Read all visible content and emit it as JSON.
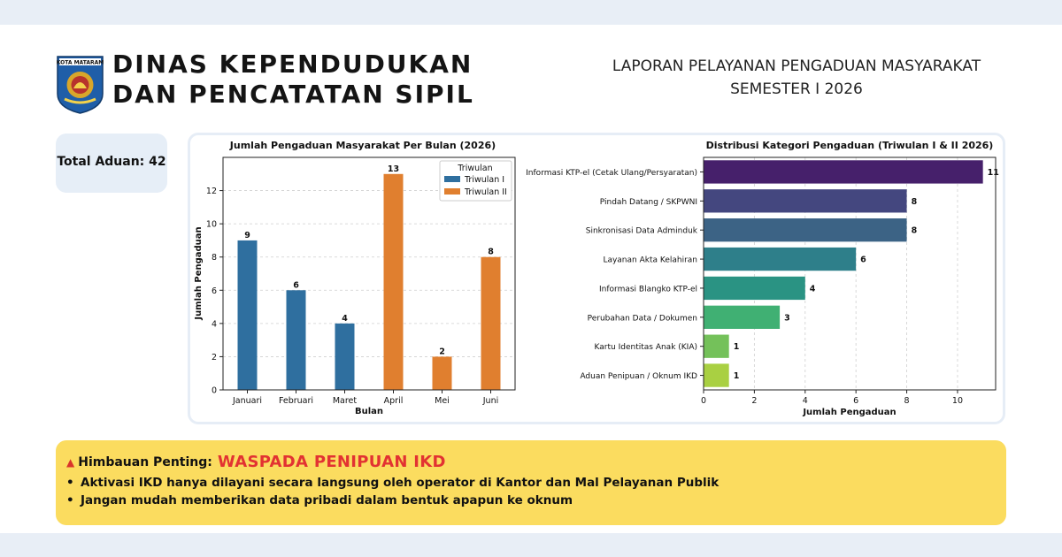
{
  "header": {
    "logo_text": "KOTA MATARAM",
    "agency_line1": "DINAS KEPENDUDUKAN",
    "agency_line2": "DAN PENCATATAN SIPIL",
    "report_line1": "LAPORAN PELAYANAN PENGADUAN MASYARAKAT",
    "report_line2": "SEMESTER I 2026"
  },
  "summary": {
    "total_label": "Total Aduan: 42"
  },
  "chart_data": [
    {
      "type": "bar",
      "title": "Jumlah Pengaduan Masyarakat Per Bulan (2026)",
      "xlabel": "Bulan",
      "ylabel": "Jumlah Pengaduan",
      "categories": [
        "Januari",
        "Februari",
        "Maret",
        "April",
        "Mei",
        "Juni"
      ],
      "series": [
        {
          "name": "Triwulan I",
          "color": "#2f6f9f",
          "values": [
            9,
            6,
            4,
            0,
            0,
            0
          ]
        },
        {
          "name": "Triwulan II",
          "color": "#e07f2f",
          "values": [
            0,
            0,
            0,
            13,
            2,
            8
          ]
        }
      ],
      "legend_title": "Triwulan",
      "legend_position": "top-right",
      "ylim": [
        0,
        14
      ],
      "yticks": [
        0,
        2,
        4,
        6,
        8,
        10,
        12
      ],
      "grid": true
    },
    {
      "type": "bar",
      "orientation": "horizontal",
      "title": "Distribusi Kategori Pengaduan (Triwulan I & II 2026)",
      "xlabel": "Jumlah Pengaduan",
      "categories": [
        "Informasi KTP-el (Cetak Ulang/Persyaratan)",
        "Pindah Datang / SKPWNI",
        "Sinkronisasi Data Adminduk",
        "Layanan Akta Kelahiran",
        "Informasi Blangko KTP-el",
        "Perubahan Data / Dokumen",
        "Kartu Identitas Anak (KIA)",
        "Aduan Penipuan / Oknum IKD"
      ],
      "values": [
        11,
        8,
        8,
        6,
        4,
        3,
        1,
        1
      ],
      "colors": [
        "#46206b",
        "#44477f",
        "#3c6385",
        "#2e7f8a",
        "#2a9383",
        "#40b073",
        "#74c15a",
        "#a9d042"
      ],
      "xlim": [
        0,
        11.5
      ],
      "xticks": [
        0,
        2,
        4,
        6,
        8,
        10
      ],
      "grid": true
    }
  ],
  "notice": {
    "warning_icon": "warning-triangle-icon",
    "label": "Himbauan Penting:",
    "title": "WASPADA PENIPUAN IKD",
    "bullets": [
      "Aktivasi IKD hanya dilayani secara langsung oleh operator di Kantor dan Mal Pelayanan Publik",
      "Jangan mudah memberikan data pribadi dalam bentuk apapun ke oknum"
    ]
  }
}
